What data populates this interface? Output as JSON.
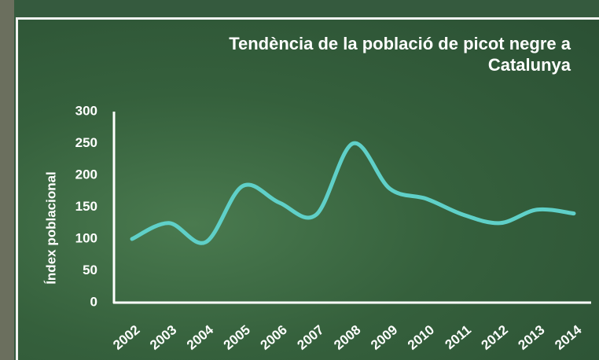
{
  "chart_data": {
    "type": "line",
    "title": "Tendència de la població de picot negre a Catalunya",
    "y_label": "Índex poblacional",
    "categories": [
      "2002",
      "2003",
      "2004",
      "2005",
      "2006",
      "2007",
      "2008",
      "2009",
      "2010",
      "2011",
      "2012",
      "2013",
      "2014"
    ],
    "values": [
      100,
      125,
      95,
      183,
      157,
      138,
      250,
      179,
      163,
      138,
      125,
      146,
      140
    ],
    "color": "#5fd0c8",
    "ylim": [
      0,
      300
    ],
    "yticks": [
      0,
      50,
      100,
      150,
      200,
      250,
      300
    ],
    "grid": false
  }
}
